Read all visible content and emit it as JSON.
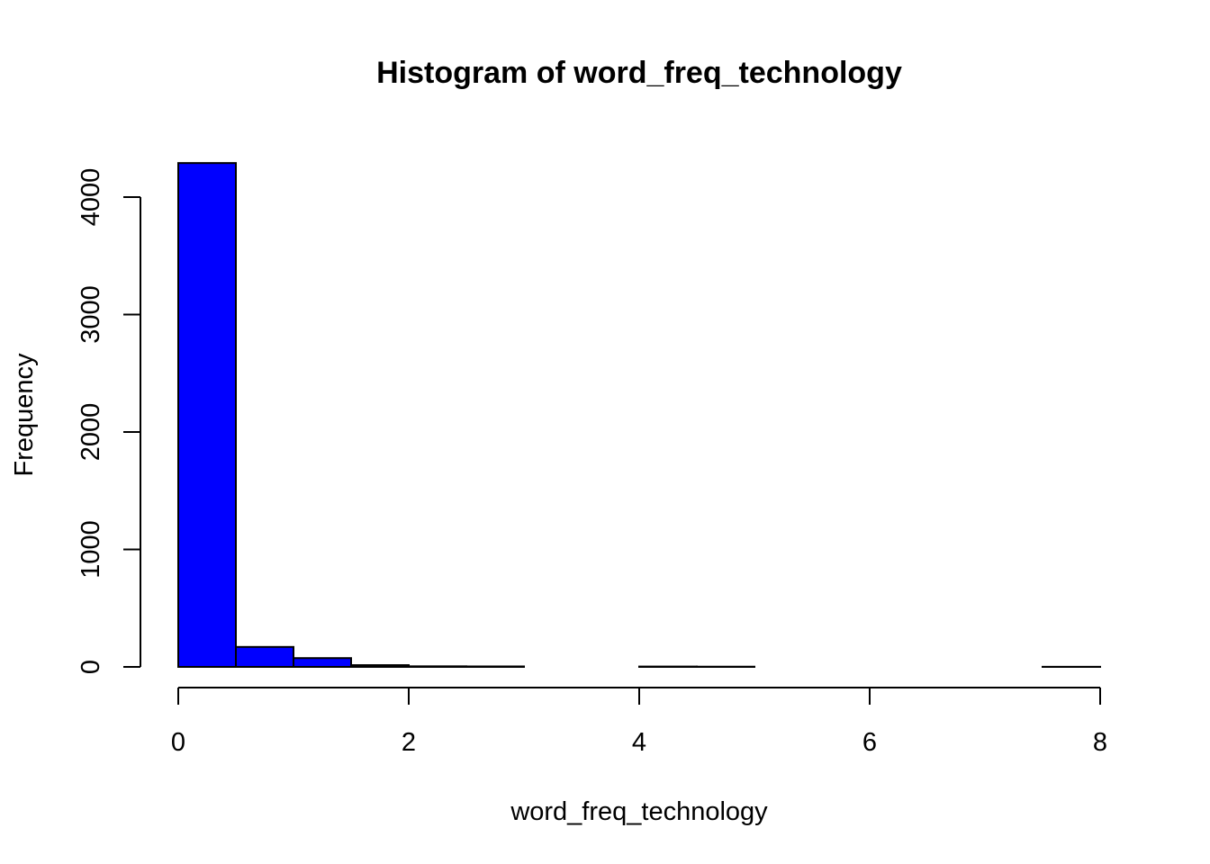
{
  "chart_data": {
    "type": "bar",
    "title": "Histogram of word_freq_technology",
    "xlabel": "word_freq_technology",
    "ylabel": "Frequency",
    "bin_edges": [
      0,
      0.5,
      1,
      1.5,
      2,
      2.5,
      3,
      3.5,
      4,
      4.5,
      5,
      5.5,
      6,
      6.5,
      7,
      7.5,
      8
    ],
    "values": [
      4290,
      170,
      75,
      15,
      5,
      4,
      0,
      0,
      3,
      2,
      0,
      0,
      0,
      0,
      0,
      1
    ],
    "xlim": [
      0,
      8
    ],
    "ylim": [
      0,
      4300
    ],
    "x_ticks": [
      0,
      2,
      4,
      6,
      8
    ],
    "x_tick_labels": [
      "0",
      "2",
      "4",
      "6",
      "8"
    ],
    "y_ticks": [
      0,
      1000,
      2000,
      3000,
      4000
    ],
    "y_tick_labels": [
      "0",
      "1000",
      "2000",
      "3000",
      "4000"
    ],
    "bar_color": "#0000ff",
    "grid": false,
    "legend": "none"
  }
}
